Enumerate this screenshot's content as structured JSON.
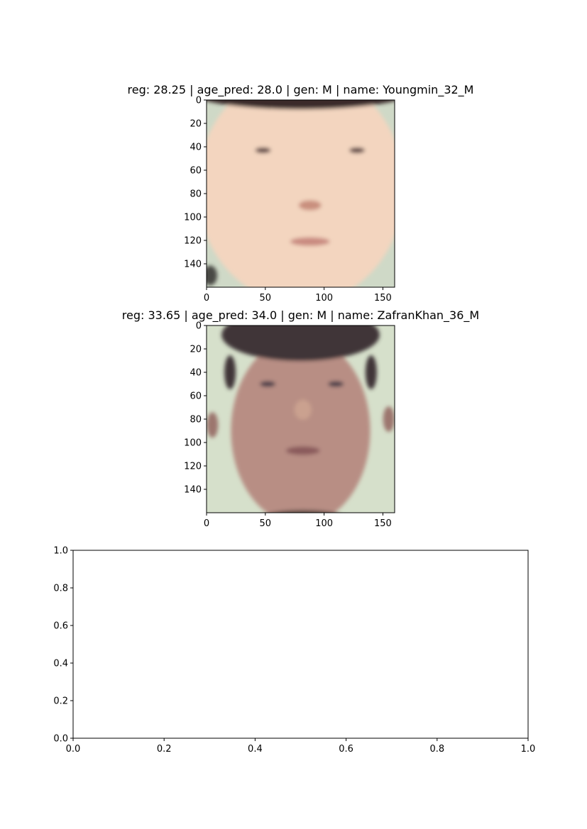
{
  "chart_data": [
    {
      "type": "image",
      "title": "reg: 28.25 | age_pred: 28.0 | gen: M | name: Youngmin_32_M",
      "xlim": [
        0,
        160
      ],
      "ylim": [
        160,
        0
      ],
      "xticks": [
        "0",
        "50",
        "100",
        "150"
      ],
      "yticks": [
        "0",
        "20",
        "40",
        "60",
        "80",
        "100",
        "120",
        "140"
      ],
      "face": {
        "skin": "#f3d5bf",
        "skin_shadow": "#e2b39a",
        "hair": "#3b2b2b",
        "background": "#cfd9c7",
        "eyes": "#5a4040",
        "lips": "#c98a80",
        "nose_shadow": "#c98f7e"
      }
    },
    {
      "type": "image",
      "title": "reg: 33.65 | age_pred: 34.0 | gen: M | name: ZafranKhan_36_M",
      "xlim": [
        0,
        160
      ],
      "ylim": [
        160,
        0
      ],
      "xticks": [
        "0",
        "50",
        "100",
        "150"
      ],
      "yticks": [
        "0",
        "20",
        "40",
        "60",
        "80",
        "100",
        "120",
        "140"
      ],
      "face": {
        "skin": "#b88e84",
        "skin_shadow": "#9c766e",
        "hair": "#3f3438",
        "background": "#d6e0cb",
        "eyes": "#4a3d48",
        "lips": "#8a5a5c",
        "nose_shadow": "#caa18f"
      }
    },
    {
      "type": "empty",
      "title": "",
      "xlim": [
        0.0,
        1.0
      ],
      "ylim": [
        0.0,
        1.0
      ],
      "xticks": [
        "0.0",
        "0.2",
        "0.4",
        "0.6",
        "0.8",
        "1.0"
      ],
      "yticks": [
        "0.0",
        "0.2",
        "0.4",
        "0.6",
        "0.8",
        "1.0"
      ]
    }
  ]
}
